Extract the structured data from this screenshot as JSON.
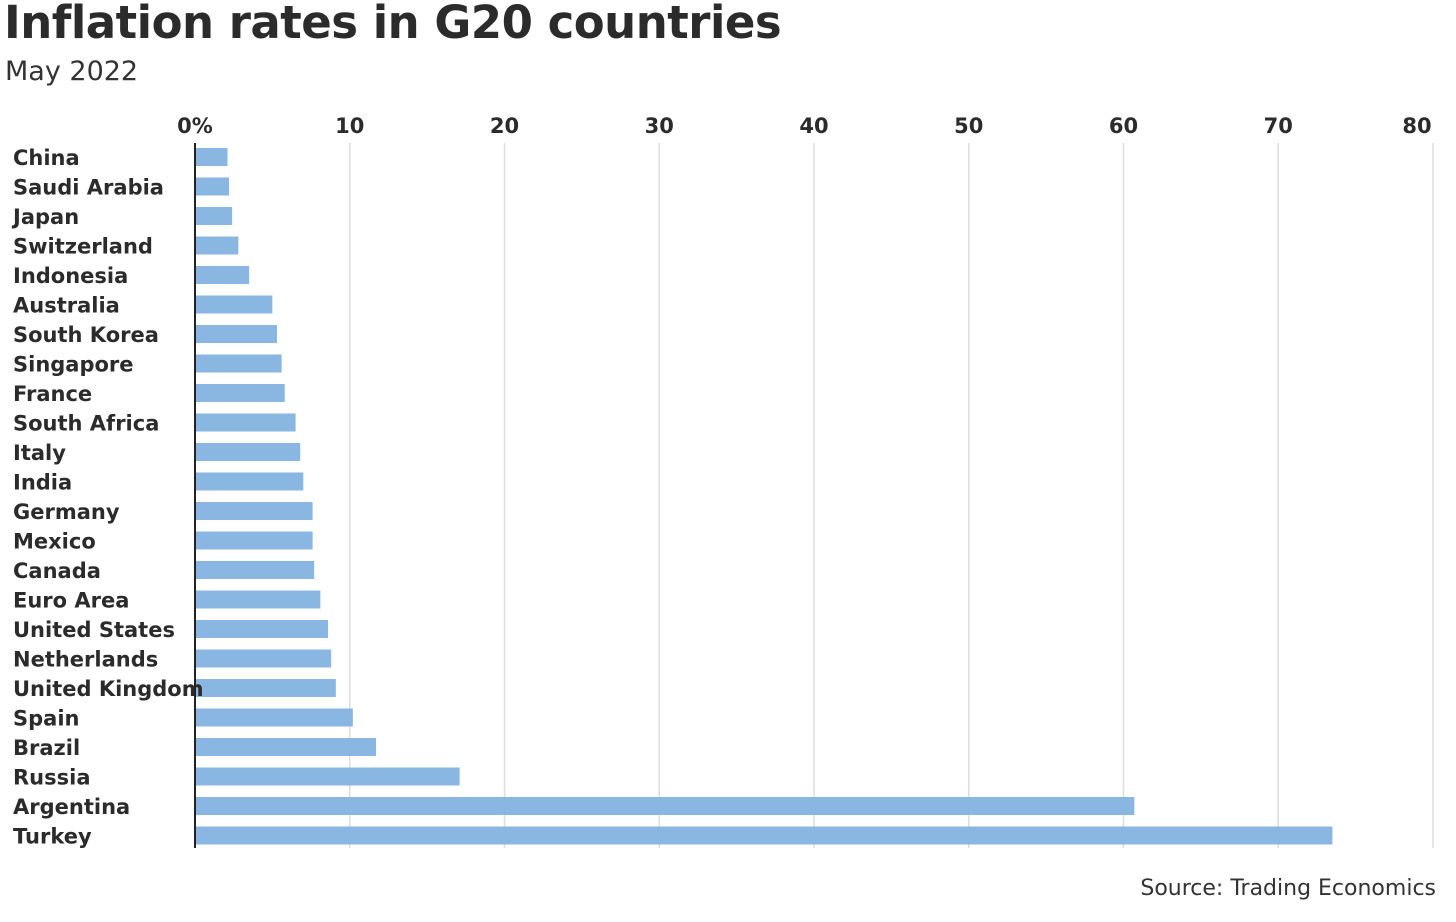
{
  "chart_data": {
    "type": "bar",
    "orientation": "horizontal",
    "title": "Inflation rates in G20 countries",
    "subtitle": "May 2022",
    "source": "Source: Trading Economics",
    "categories": [
      "China",
      "Saudi Arabia",
      "Japan",
      "Switzerland",
      "Indonesia",
      "Australia",
      "South Korea",
      "Singapore",
      "France",
      "South Africa",
      "Italy",
      "India",
      "Germany",
      "Mexico",
      "Canada",
      "Euro Area",
      "United States",
      "Netherlands",
      "United Kingdom",
      "Spain",
      "Brazil",
      "Russia",
      "Argentina",
      "Turkey"
    ],
    "values": [
      2.1,
      2.2,
      2.4,
      2.8,
      3.5,
      5.0,
      5.3,
      5.6,
      5.8,
      6.5,
      6.8,
      7.0,
      7.6,
      7.6,
      7.7,
      8.1,
      8.6,
      8.8,
      9.1,
      10.2,
      11.7,
      17.1,
      60.7,
      73.5
    ],
    "xlim": [
      0,
      80
    ],
    "x_ticks": [
      "0%",
      "10",
      "20",
      "30",
      "40",
      "50",
      "60",
      "70",
      "80"
    ],
    "x_tick_values": [
      0,
      10,
      20,
      30,
      40,
      50,
      60,
      70,
      80
    ],
    "xaxis_position": "top",
    "grid": "vertical",
    "bar_color": "#8ab6e2",
    "grid_color": "#dddddd",
    "axis_color": "#222222"
  }
}
